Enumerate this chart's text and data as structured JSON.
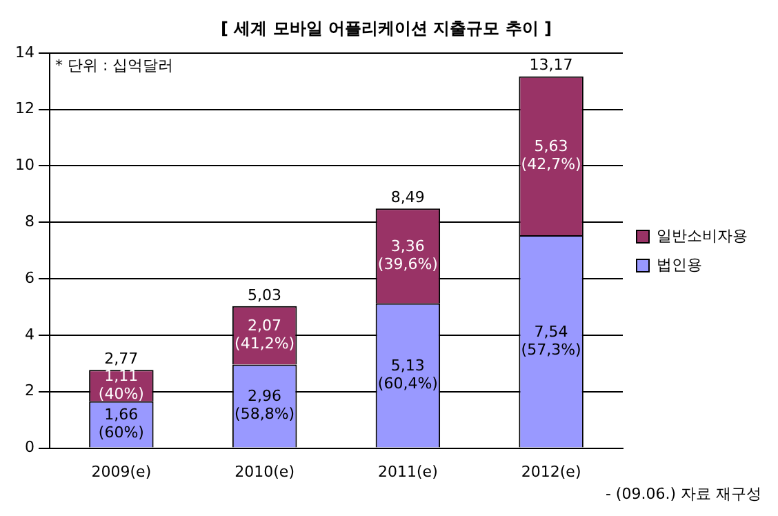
{
  "chart_data": {
    "type": "bar",
    "title": "[ 세계 모바일 어플리케이션 지출규모 추이 ]",
    "categories": [
      "2009(e)",
      "2010(e)",
      "2011(e)",
      "2012(e)"
    ],
    "stacked": true,
    "series": [
      {
        "name": "법인용",
        "color": "#9999ff",
        "values": [
          1.66,
          2.96,
          5.13,
          7.54
        ],
        "value_labels": [
          "1,66\n(60%)",
          "2,96\n(58,8%)",
          "5,13\n(60,4%)",
          "7,54\n(57,3%)"
        ]
      },
      {
        "name": "일반소비자용",
        "color": "#993366",
        "values": [
          1.11,
          2.07,
          3.36,
          5.63
        ],
        "value_labels": [
          "1,11\n(40%)",
          "2,07\n(41,2%)",
          "3,36\n(39,6%)",
          "5,63\n(42,7%)"
        ]
      }
    ],
    "totals": [
      "2,77",
      "5,03",
      "8,49",
      "13,17"
    ],
    "ylim": [
      0,
      14
    ],
    "yticks": [
      0,
      2,
      4,
      6,
      8,
      10,
      12,
      14
    ],
    "grid": "y",
    "legend": "right",
    "annotations": [
      "* 단위 : 십억달러",
      "- (09.06.) 자료 재구성"
    ]
  }
}
